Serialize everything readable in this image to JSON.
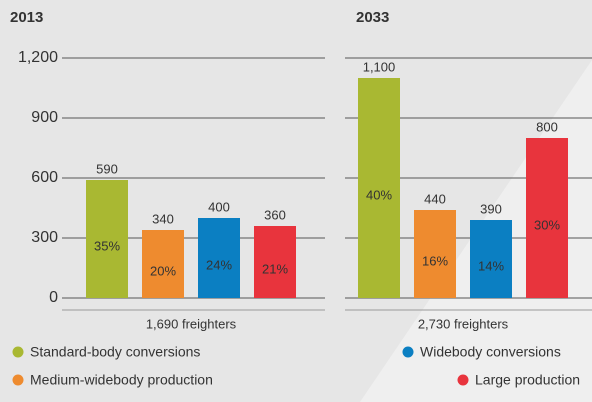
{
  "legend": [
    {
      "name": "Standard-body conversions",
      "color": "#a9b832"
    },
    {
      "name": "Medium-widebody production",
      "color": "#ee8b2f"
    },
    {
      "name": "Widebody conversions",
      "color": "#0b7fc2"
    },
    {
      "name": "Large production",
      "color": "#e8343d"
    }
  ],
  "chart_data": [
    {
      "type": "bar",
      "title": "2013",
      "values": [
        590,
        340,
        400,
        360
      ],
      "share_labels": [
        "35%",
        "20%",
        "24%",
        "21%"
      ],
      "footer": "1,690 freighters",
      "ylim": [
        0,
        1200
      ],
      "yticks": [
        0,
        300,
        600,
        900,
        {
          "value": 1200,
          "label": "1,200"
        }
      ],
      "grid": true,
      "tick_labels": true
    },
    {
      "type": "bar",
      "title": "2033",
      "values": [
        1100,
        440,
        390,
        800
      ],
      "value_labels": [
        "1,100",
        "440",
        "390",
        "800"
      ],
      "share_labels": [
        "40%",
        "16%",
        "14%",
        "30%"
      ],
      "footer": "2,730 freighters",
      "ylim": [
        0,
        1200
      ],
      "yticks": [
        0,
        300,
        600,
        900,
        1200
      ],
      "grid": true,
      "tick_labels": false
    }
  ]
}
